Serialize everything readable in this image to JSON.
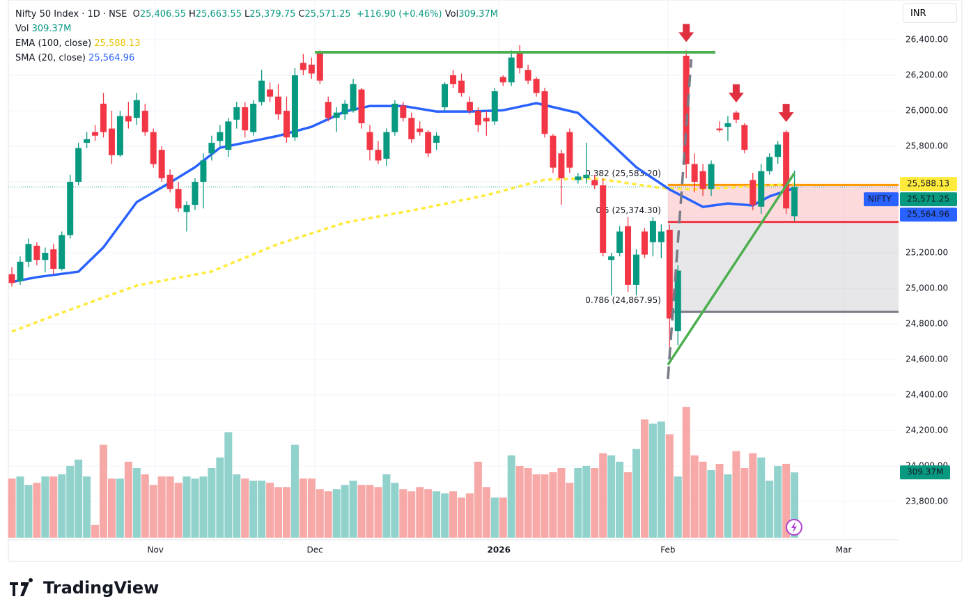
{
  "header": {
    "title": "Nifty 50 Index · 1D · NSE",
    "ohlc": [
      {
        "label": "O",
        "value": "25,406.55"
      },
      {
        "label": "H",
        "value": "25,663.55"
      },
      {
        "label": "L",
        "value": "25,379.75"
      },
      {
        "label": "C",
        "value": "25,571.25"
      }
    ],
    "change": "+116.90 (+0.46%)",
    "vol_label": "Vol"
  },
  "currency": "INR",
  "brand": "TradingView",
  "chart_data": {
    "type": "candlestick",
    "candles": [
      [
        25080,
        25120,
        25010,
        25030
      ],
      [
        25040,
        25180,
        25020,
        25150
      ],
      [
        25150,
        25280,
        25120,
        25250
      ],
      [
        25240,
        25260,
        25130,
        25160
      ],
      [
        25160,
        25230,
        25090,
        25200
      ],
      [
        25220,
        25250,
        25080,
        25110
      ],
      [
        25110,
        25320,
        25100,
        25300
      ],
      [
        25300,
        25640,
        25280,
        25600
      ],
      [
        25600,
        25820,
        25580,
        25790
      ],
      [
        25820,
        25880,
        25790,
        25840
      ],
      [
        25880,
        25920,
        25830,
        25860
      ],
      [
        26040,
        26100,
        25850,
        25880
      ],
      [
        25900,
        26000,
        25700,
        25750
      ],
      [
        25750,
        26000,
        25740,
        25970
      ],
      [
        25970,
        26050,
        25900,
        25940
      ],
      [
        25960,
        26100,
        25920,
        26060
      ],
      [
        26000,
        26040,
        25860,
        25880
      ],
      [
        25880,
        25900,
        25680,
        25700
      ],
      [
        25780,
        25800,
        25600,
        25620
      ],
      [
        25640,
        25670,
        25540,
        25560
      ],
      [
        25560,
        25600,
        25430,
        25450
      ],
      [
        25430,
        25490,
        25320,
        25470
      ],
      [
        25470,
        25620,
        25440,
        25600
      ],
      [
        25600,
        25760,
        25450,
        25720
      ],
      [
        25760,
        25860,
        25720,
        25820
      ],
      [
        25830,
        25920,
        25800,
        25880
      ],
      [
        25780,
        25960,
        25740,
        25940
      ],
      [
        25950,
        26050,
        25900,
        26020
      ],
      [
        26020,
        26050,
        25850,
        25890
      ],
      [
        25880,
        26060,
        25860,
        26040
      ],
      [
        26050,
        26230,
        26030,
        26170
      ],
      [
        26120,
        26160,
        26050,
        26080
      ],
      [
        26080,
        26150,
        25950,
        25980
      ],
      [
        26000,
        26080,
        25820,
        25850
      ],
      [
        25850,
        26240,
        25830,
        26200
      ],
      [
        26270,
        26320,
        26200,
        26230
      ],
      [
        26260,
        26300,
        26180,
        26210
      ],
      [
        26330,
        26340,
        26150,
        26170
      ],
      [
        26050,
        26080,
        25940,
        25960
      ],
      [
        25960,
        26020,
        25880,
        25990
      ],
      [
        25980,
        26060,
        25950,
        26040
      ],
      [
        26000,
        26180,
        25990,
        26150
      ],
      [
        26120,
        26130,
        25900,
        25930
      ],
      [
        25880,
        25920,
        25720,
        25780
      ],
      [
        25780,
        25830,
        25700,
        25720
      ],
      [
        25730,
        25900,
        25690,
        25880
      ],
      [
        25880,
        26060,
        25860,
        26040
      ],
      [
        26030,
        26050,
        25940,
        25960
      ],
      [
        25960,
        25990,
        25820,
        25840
      ],
      [
        25900,
        25940,
        25860,
        25880
      ],
      [
        25880,
        25890,
        25740,
        25760
      ],
      [
        25820,
        25880,
        25780,
        25860
      ],
      [
        26020,
        26160,
        26000,
        26150
      ],
      [
        26200,
        26230,
        26130,
        26150
      ],
      [
        26170,
        26210,
        26080,
        26100
      ],
      [
        26050,
        26080,
        25980,
        26000
      ],
      [
        26000,
        26020,
        25880,
        25920
      ],
      [
        25960,
        26000,
        25860,
        25940
      ],
      [
        25940,
        26130,
        25920,
        26110
      ],
      [
        26190,
        26200,
        26140,
        26160
      ],
      [
        26160,
        26340,
        26140,
        26300
      ],
      [
        26330,
        26370,
        26210,
        26240
      ],
      [
        26230,
        26260,
        26150,
        26170
      ],
      [
        26180,
        26190,
        26080,
        26100
      ],
      [
        26110,
        26130,
        25850,
        25870
      ],
      [
        25860,
        25870,
        25650,
        25680
      ],
      [
        25760,
        25780,
        25470,
        25620
      ],
      [
        25880,
        25900,
        25650,
        25680
      ],
      [
        25610,
        25650,
        25590,
        25630
      ],
      [
        25620,
        25820,
        25590,
        25640
      ],
      [
        25610,
        25640,
        25560,
        25580
      ],
      [
        25580,
        25620,
        25180,
        25200
      ],
      [
        25160,
        25200,
        24960,
        25180
      ],
      [
        25200,
        25350,
        25180,
        25320
      ],
      [
        25350,
        25400,
        24980,
        25020
      ],
      [
        25020,
        25220,
        24960,
        25190
      ],
      [
        25320,
        25340,
        25170,
        25190
      ],
      [
        25260,
        25400,
        25180,
        25380
      ],
      [
        25260,
        25360,
        25170,
        25320
      ],
      [
        25330,
        25360,
        24620,
        24830
      ],
      [
        24760,
        25130,
        24680,
        25100
      ],
      [
        26310,
        26340,
        25620,
        25700
      ],
      [
        25700,
        25760,
        25540,
        25600
      ],
      [
        25660,
        25700,
        25520,
        25560
      ],
      [
        25560,
        25720,
        25520,
        25700
      ],
      [
        25900,
        25940,
        25880,
        25890
      ],
      [
        25910,
        25970,
        25830,
        25930
      ],
      [
        25990,
        26000,
        25930,
        25950
      ],
      [
        25920,
        25930,
        25760,
        25780
      ],
      [
        25610,
        25650,
        25440,
        25470
      ],
      [
        25460,
        25700,
        25420,
        25660
      ],
      [
        25660,
        25760,
        25640,
        25740
      ],
      [
        25740,
        25830,
        25700,
        25810
      ],
      [
        25880,
        25890,
        25420,
        25450
      ],
      [
        25406.55,
        25663.55,
        25379.75,
        25571.25
      ]
    ],
    "volumes": [
      280,
      290,
      250,
      260,
      290,
      290,
      300,
      340,
      370,
      290,
      60,
      440,
      280,
      280,
      360,
      330,
      300,
      250,
      290,
      290,
      260,
      290,
      280,
      290,
      330,
      380,
      500,
      300,
      280,
      270,
      270,
      260,
      240,
      240,
      440,
      280,
      280,
      230,
      220,
      230,
      250,
      270,
      250,
      250,
      240,
      300,
      260,
      230,
      220,
      240,
      230,
      220,
      210,
      220,
      190,
      210,
      360,
      240,
      190,
      190,
      390,
      340,
      330,
      300,
      300,
      310,
      330,
      260,
      330,
      340,
      330,
      400,
      390,
      360,
      310,
      420,
      560,
      540,
      550,
      490,
      290,
      620,
      390,
      360,
      320,
      350,
      300,
      410,
      330,
      400,
      380,
      270,
      340,
      350,
      309.37
    ],
    "volume_label": "309.37M",
    "colors": {
      "up": "#089981",
      "down": "#f23645",
      "vol_up": "#92d2cc",
      "vol_down": "#f7a9a7"
    },
    "ylim": [
      23584,
      26624
    ],
    "xlim": [
      -0.42,
      106.5
    ],
    "vlim": [
      0,
      650
    ],
    "yticks": [
      {
        "value": 23800,
        "label": "23,800.00"
      },
      {
        "value": 24000,
        "label": "24,000.00"
      },
      {
        "value": 24200,
        "label": "24,200.00"
      },
      {
        "value": 24400,
        "label": "24,400.00"
      },
      {
        "value": 24600,
        "label": "24,600.00"
      },
      {
        "value": 24800,
        "label": "24,800.00"
      },
      {
        "value": 25000,
        "label": "25,000.00"
      },
      {
        "value": 25200,
        "label": "25,200.00"
      },
      {
        "value": 25400,
        "label": "25,400.00"
      },
      {
        "value": 25600,
        "label": "25,600.00"
      },
      {
        "value": 25800,
        "label": "25,800.00"
      },
      {
        "value": 26000,
        "label": "26,000.00"
      },
      {
        "value": 26200,
        "label": "26,200.00"
      },
      {
        "value": 26400,
        "label": "26,400.00"
      }
    ],
    "xticks": [
      {
        "value": 17.25,
        "label": "Nov"
      },
      {
        "value": 36.4,
        "label": "Dec"
      },
      {
        "value": 58.5,
        "label": "2026"
      },
      {
        "value": 78.8,
        "label": "Feb"
      },
      {
        "value": 99.9,
        "label": "Mar"
      }
    ],
    "grid": true,
    "series": [
      {
        "name": "EMA (100, close)",
        "color": "#ffeb3b",
        "label_color": "#e6c200",
        "dashed": true,
        "x": [
          0,
          7,
          15,
          24,
          32,
          40,
          49,
          57,
          64,
          70,
          78,
          82,
          94
        ],
        "values": [
          24757,
          24880,
          25016,
          25095,
          25250,
          25370,
          25447,
          25525,
          25612,
          25620,
          25565,
          25557,
          25588.13
        ],
        "last_label": "25,588.13"
      },
      {
        "name": "SMA (20, close)",
        "color": "#2962ff",
        "label_color": "#2962ff",
        "dashed": false,
        "x": [
          0,
          3,
          8,
          11,
          15,
          19,
          22,
          25,
          32,
          36,
          40,
          43,
          47,
          51,
          55,
          59,
          63,
          68,
          71,
          75,
          79,
          83,
          86,
          89,
          91,
          94
        ],
        "values": [
          25036,
          25063,
          25094,
          25231,
          25486,
          25596,
          25682,
          25792,
          25859,
          25910,
          25996,
          26027,
          26027,
          25996,
          25996,
          26003,
          26043,
          25988,
          25859,
          25682,
          25557,
          25459,
          25478,
          25467,
          25518,
          25564.96
        ],
        "last_label": "25,564.96"
      }
    ],
    "last_price": {
      "name": "NIFTY",
      "value": 25571.25,
      "label": "25,571.25"
    },
    "fib": {
      "start": 78.8,
      "levels": [
        {
          "value": 25583.2,
          "label": "0.382 (25,583.20)",
          "color": "#ff9800"
        },
        {
          "value": 25374.3,
          "label": "0.5 (25,374.30)",
          "color": "#f23645"
        },
        {
          "value": 24867.95,
          "label": "0.786 (24,867.95)",
          "color": "#787b86"
        }
      ]
    },
    "drawings": {
      "hline": {
        "x": [
          36.4,
          84.5
        ],
        "values": [
          26330,
          26330
        ],
        "color": "#4caf50"
      },
      "trendline": {
        "x": [
          78.8,
          94
        ],
        "values": [
          24570,
          25650
        ],
        "color": "#4caf50"
      },
      "dashed": {
        "x": [
          78.8,
          81.6
        ],
        "values": [
          24490,
          26290
        ],
        "color": "#787b86"
      },
      "arrows": [
        81,
        87,
        93
      ]
    }
  }
}
